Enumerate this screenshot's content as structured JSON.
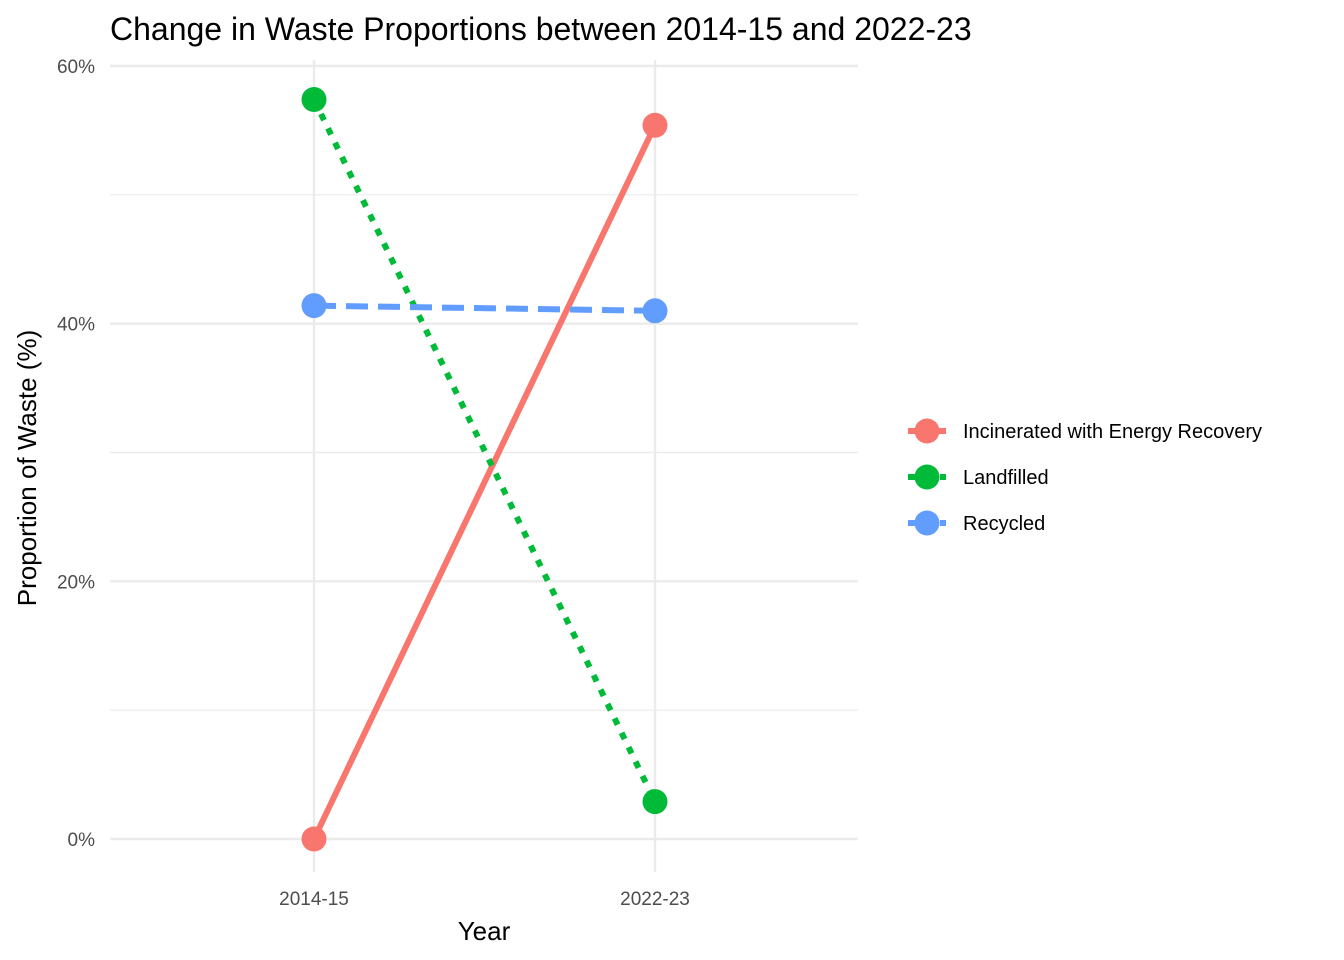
{
  "chart_data": {
    "type": "line",
    "title": "Change in Waste Proportions between 2014-15 and 2022-23",
    "xlabel": "Year",
    "ylabel": "Proportion of Waste (%)",
    "categories": [
      "2014-15",
      "2022-23"
    ],
    "ylim": [
      -2.2,
      62
    ],
    "y_ticks": [
      0,
      20,
      40,
      60
    ],
    "y_tick_labels": [
      "0%",
      "20%",
      "40%",
      "60%"
    ],
    "y_minor_ticks": [
      10,
      30,
      50
    ],
    "grid": true,
    "legend_position": "right",
    "series": [
      {
        "name": "Incinerated with Energy Recovery",
        "values": [
          0.0,
          55.4
        ],
        "color": "#F8766D",
        "dash": "solid"
      },
      {
        "name": "Landfilled",
        "values": [
          57.4,
          2.9
        ],
        "color": "#00BA38",
        "dash": "dotted"
      },
      {
        "name": "Recycled",
        "values": [
          41.4,
          41.0
        ],
        "color": "#619CFF",
        "dash": "dashed"
      }
    ]
  }
}
